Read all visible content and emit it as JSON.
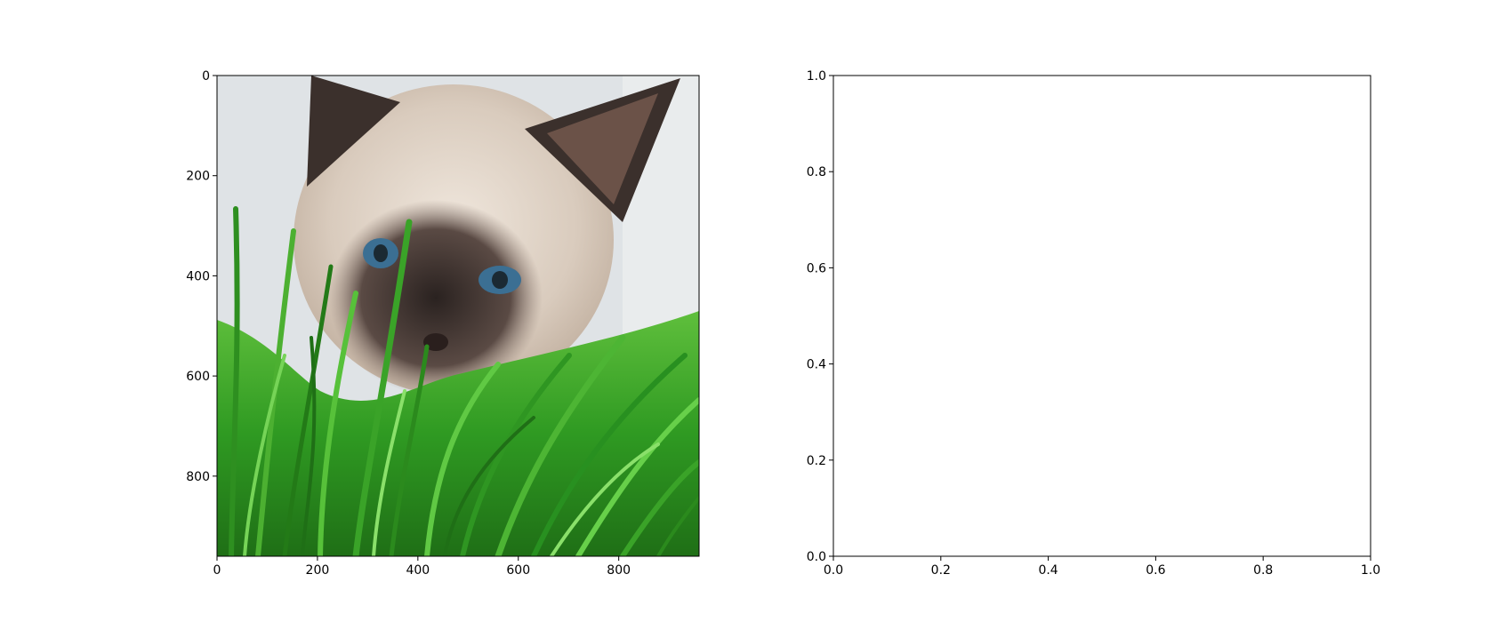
{
  "chart_data": [
    {
      "type": "image",
      "image_subject": "siamese-kitten-in-cat-grass",
      "xlim": [
        0,
        960
      ],
      "ylim": [
        960,
        0
      ],
      "x_ticks": [
        0,
        200,
        400,
        600,
        800
      ],
      "y_ticks": [
        0,
        200,
        400,
        600,
        800
      ],
      "x_tick_labels": [
        "0",
        "200",
        "400",
        "600",
        "800"
      ],
      "y_tick_labels": [
        "0",
        "200",
        "400",
        "600",
        "800"
      ],
      "title": "",
      "xlabel": "",
      "ylabel": "",
      "grid": false
    },
    {
      "type": "empty",
      "xlim": [
        0.0,
        1.0
      ],
      "ylim": [
        0.0,
        1.0
      ],
      "x_ticks": [
        0.0,
        0.2,
        0.4,
        0.6,
        0.8,
        1.0
      ],
      "y_ticks": [
        0.0,
        0.2,
        0.4,
        0.6,
        0.8,
        1.0
      ],
      "x_tick_labels": [
        "0.0",
        "0.2",
        "0.4",
        "0.6",
        "0.8",
        "1.0"
      ],
      "y_tick_labels": [
        "0.0",
        "0.2",
        "0.4",
        "0.6",
        "0.8",
        "1.0"
      ],
      "title": "",
      "xlabel": "",
      "ylabel": "",
      "grid": false
    }
  ],
  "colors": {
    "axis": "#000000",
    "background": "#ffffff"
  }
}
